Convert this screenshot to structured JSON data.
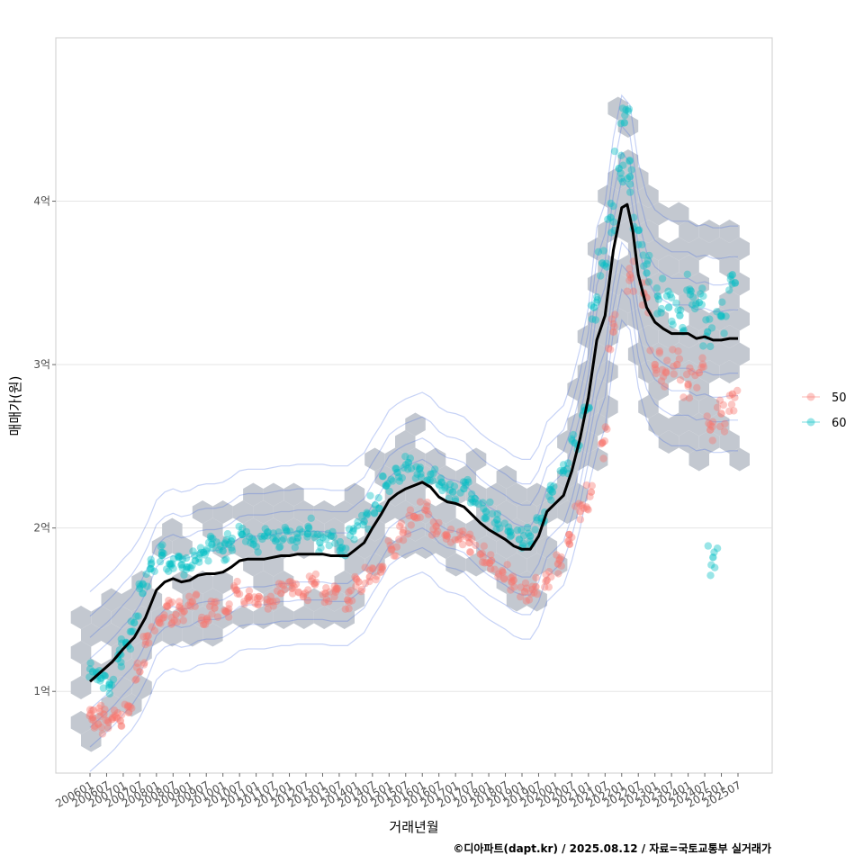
{
  "chart_data": {
    "type": "scatter",
    "title": "",
    "xlabel": "거래년월",
    "ylabel": "매매가(원)",
    "caption": "©디아파트(dapt.kr) / 2025.08.12 / 자료=국토교통부 실거래가",
    "ylim": [
      0.5,
      5.0
    ],
    "y_unit": "억",
    "yticks": [
      1,
      2,
      3,
      4
    ],
    "ytick_labels": [
      "1억",
      "2억",
      "3억",
      "4억"
    ],
    "x_start": "2006-01",
    "x_end": "2025-07",
    "xticks": [
      "200601",
      "200607",
      "200701",
      "200707",
      "200801",
      "200807",
      "200901",
      "200907",
      "201001",
      "201007",
      "201101",
      "201107",
      "201201",
      "201207",
      "201301",
      "201307",
      "201401",
      "201407",
      "201501",
      "201507",
      "201601",
      "201607",
      "201701",
      "201707",
      "201801",
      "201807",
      "201901",
      "201907",
      "202001",
      "202007",
      "202101",
      "202107",
      "202201",
      "202207",
      "202301",
      "202307",
      "202401",
      "202407",
      "202501",
      "202507"
    ],
    "legend": {
      "position": "right",
      "entries": [
        {
          "label": "50",
          "color": "#F8766D"
        },
        {
          "label": "60",
          "color": "#00BFC4"
        }
      ]
    },
    "trend_line": {
      "name": "moving average",
      "color": "#000000",
      "points": [
        [
          "2006-01",
          1.06
        ],
        [
          "2006-05",
          1.12
        ],
        [
          "2006-09",
          1.18
        ],
        [
          "2007-01",
          1.26
        ],
        [
          "2007-05",
          1.33
        ],
        [
          "2007-09",
          1.45
        ],
        [
          "2008-01",
          1.62
        ],
        [
          "2008-04",
          1.67
        ],
        [
          "2008-07",
          1.69
        ],
        [
          "2008-10",
          1.67
        ],
        [
          "2009-01",
          1.68
        ],
        [
          "2009-04",
          1.71
        ],
        [
          "2009-07",
          1.72
        ],
        [
          "2009-10",
          1.72
        ],
        [
          "2010-01",
          1.73
        ],
        [
          "2010-04",
          1.76
        ],
        [
          "2010-07",
          1.8
        ],
        [
          "2010-10",
          1.81
        ],
        [
          "2011-01",
          1.81
        ],
        [
          "2011-04",
          1.81
        ],
        [
          "2011-07",
          1.82
        ],
        [
          "2011-10",
          1.83
        ],
        [
          "2012-01",
          1.83
        ],
        [
          "2012-04",
          1.84
        ],
        [
          "2012-07",
          1.84
        ],
        [
          "2012-10",
          1.84
        ],
        [
          "2013-01",
          1.84
        ],
        [
          "2013-04",
          1.83
        ],
        [
          "2013-07",
          1.83
        ],
        [
          "2013-10",
          1.83
        ],
        [
          "2014-01",
          1.87
        ],
        [
          "2014-04",
          1.91
        ],
        [
          "2014-07",
          2.0
        ],
        [
          "2014-10",
          2.08
        ],
        [
          "2015-01",
          2.17
        ],
        [
          "2015-04",
          2.21
        ],
        [
          "2015-07",
          2.24
        ],
        [
          "2015-10",
          2.26
        ],
        [
          "2016-01",
          2.28
        ],
        [
          "2016-04",
          2.25
        ],
        [
          "2016-07",
          2.19
        ],
        [
          "2016-10",
          2.16
        ],
        [
          "2017-01",
          2.15
        ],
        [
          "2017-04",
          2.13
        ],
        [
          "2017-07",
          2.08
        ],
        [
          "2017-10",
          2.03
        ],
        [
          "2018-01",
          1.99
        ],
        [
          "2018-04",
          1.96
        ],
        [
          "2018-07",
          1.93
        ],
        [
          "2018-10",
          1.89
        ],
        [
          "2019-01",
          1.87
        ],
        [
          "2019-04",
          1.87
        ],
        [
          "2019-07",
          1.95
        ],
        [
          "2019-10",
          2.1
        ],
        [
          "2020-01",
          2.15
        ],
        [
          "2020-04",
          2.2
        ],
        [
          "2020-07",
          2.35
        ],
        [
          "2020-10",
          2.55
        ],
        [
          "2021-01",
          2.8
        ],
        [
          "2021-04",
          3.15
        ],
        [
          "2021-07",
          3.3
        ],
        [
          "2021-10",
          3.7
        ],
        [
          "2022-01",
          3.96
        ],
        [
          "2022-03",
          3.98
        ],
        [
          "2022-05",
          3.82
        ],
        [
          "2022-07",
          3.55
        ],
        [
          "2022-10",
          3.35
        ],
        [
          "2023-01",
          3.26
        ],
        [
          "2023-04",
          3.22
        ],
        [
          "2023-07",
          3.19
        ],
        [
          "2023-10",
          3.19
        ],
        [
          "2024-01",
          3.19
        ],
        [
          "2024-04",
          3.16
        ],
        [
          "2024-07",
          3.17
        ],
        [
          "2024-10",
          3.15
        ],
        [
          "2025-01",
          3.15
        ],
        [
          "2025-04",
          3.16
        ],
        [
          "2025-07",
          3.16
        ]
      ]
    },
    "series": [
      {
        "name": "50",
        "color": "#F8766D",
        "points": [
          [
            "2006-02",
            0.84
          ],
          [
            "2006-04",
            0.8
          ],
          [
            "2006-06",
            0.86
          ],
          [
            "2006-09",
            0.83
          ],
          [
            "2006-12",
            0.82
          ],
          [
            "2007-03",
            0.87
          ],
          [
            "2007-07",
            1.12
          ],
          [
            "2007-10",
            1.34
          ],
          [
            "2008-02",
            1.42
          ],
          [
            "2008-05",
            1.52
          ],
          [
            "2008-08",
            1.47
          ],
          [
            "2008-11",
            1.49
          ],
          [
            "2009-02",
            1.55
          ],
          [
            "2009-06",
            1.41
          ],
          [
            "2009-10",
            1.51
          ],
          [
            "2010-02",
            1.49
          ],
          [
            "2010-06",
            1.62
          ],
          [
            "2010-10",
            1.57
          ],
          [
            "2011-02",
            1.58
          ],
          [
            "2011-06",
            1.55
          ],
          [
            "2011-10",
            1.6
          ],
          [
            "2012-02",
            1.63
          ],
          [
            "2012-06",
            1.58
          ],
          [
            "2012-10",
            1.66
          ],
          [
            "2013-02",
            1.6
          ],
          [
            "2013-06",
            1.63
          ],
          [
            "2013-10",
            1.56
          ],
          [
            "2014-02",
            1.67
          ],
          [
            "2014-06",
            1.7
          ],
          [
            "2014-10",
            1.73
          ],
          [
            "2015-02",
            1.87
          ],
          [
            "2015-06",
            1.97
          ],
          [
            "2015-10",
            2.07
          ],
          [
            "2016-02",
            2.11
          ],
          [
            "2016-06",
            2.01
          ],
          [
            "2016-10",
            1.95
          ],
          [
            "2017-02",
            1.93
          ],
          [
            "2017-06",
            1.91
          ],
          [
            "2017-10",
            1.84
          ],
          [
            "2018-02",
            1.8
          ],
          [
            "2018-06",
            1.73
          ],
          [
            "2018-10",
            1.68
          ],
          [
            "2019-02",
            1.61
          ],
          [
            "2019-06",
            1.64
          ],
          [
            "2019-10",
            1.68
          ],
          [
            "2020-02",
            1.78
          ],
          [
            "2020-06",
            1.96
          ],
          [
            "2020-10",
            2.1
          ],
          [
            "2021-02",
            2.22
          ],
          [
            "2021-06",
            2.52
          ],
          [
            "2021-10",
            3.2
          ],
          [
            "2022-04",
            3.55
          ],
          [
            "2022-10",
            3.41
          ],
          [
            "2023-01",
            3.0
          ],
          [
            "2023-05",
            2.95
          ],
          [
            "2023-09",
            3.0
          ],
          [
            "2024-01",
            2.88
          ],
          [
            "2024-05",
            2.95
          ],
          [
            "2024-09",
            2.6
          ],
          [
            "2025-01",
            2.7
          ],
          [
            "2025-05",
            2.82
          ]
        ]
      },
      {
        "name": "60",
        "color": "#00BFC4",
        "points": [
          [
            "2006-02",
            1.12
          ],
          [
            "2006-05",
            1.08
          ],
          [
            "2006-08",
            1.04
          ],
          [
            "2006-11",
            1.2
          ],
          [
            "2007-02",
            1.3
          ],
          [
            "2007-05",
            1.42
          ],
          [
            "2007-08",
            1.6
          ],
          [
            "2007-11",
            1.75
          ],
          [
            "2008-03",
            1.85
          ],
          [
            "2008-06",
            1.78
          ],
          [
            "2008-09",
            1.82
          ],
          [
            "2008-12",
            1.76
          ],
          [
            "2009-03",
            1.8
          ],
          [
            "2009-06",
            1.85
          ],
          [
            "2009-09",
            1.9
          ],
          [
            "2010-01",
            1.86
          ],
          [
            "2010-04",
            1.92
          ],
          [
            "2010-08",
            1.96
          ],
          [
            "2010-12",
            1.9
          ],
          [
            "2011-04",
            1.95
          ],
          [
            "2011-08",
            1.92
          ],
          [
            "2011-12",
            1.98
          ],
          [
            "2012-04",
            1.94
          ],
          [
            "2012-08",
            2.0
          ],
          [
            "2012-12",
            1.91
          ],
          [
            "2013-04",
            1.95
          ],
          [
            "2013-08",
            1.88
          ],
          [
            "2013-12",
            1.98
          ],
          [
            "2014-04",
            2.04
          ],
          [
            "2014-08",
            2.14
          ],
          [
            "2014-12",
            2.26
          ],
          [
            "2015-04",
            2.34
          ],
          [
            "2015-08",
            2.4
          ],
          [
            "2015-12",
            2.36
          ],
          [
            "2016-04",
            2.33
          ],
          [
            "2016-08",
            2.28
          ],
          [
            "2016-12",
            2.22
          ],
          [
            "2017-04",
            2.24
          ],
          [
            "2017-08",
            2.18
          ],
          [
            "2017-12",
            2.1
          ],
          [
            "2018-04",
            2.05
          ],
          [
            "2018-08",
            1.98
          ],
          [
            "2018-12",
            1.93
          ],
          [
            "2019-04",
            1.95
          ],
          [
            "2019-08",
            2.06
          ],
          [
            "2019-12",
            2.22
          ],
          [
            "2020-04",
            2.35
          ],
          [
            "2020-08",
            2.52
          ],
          [
            "2020-12",
            2.72
          ],
          [
            "2021-03",
            3.35
          ],
          [
            "2021-06",
            3.62
          ],
          [
            "2021-09",
            3.9
          ],
          [
            "2021-12",
            4.2
          ],
          [
            "2022-02",
            4.48
          ],
          [
            "2022-04",
            4.15
          ],
          [
            "2022-07",
            3.82
          ],
          [
            "2022-10",
            3.56
          ],
          [
            "2023-02",
            3.42
          ],
          [
            "2023-06",
            3.35
          ],
          [
            "2023-10",
            3.3
          ],
          [
            "2024-02",
            3.45
          ],
          [
            "2024-05",
            3.38
          ],
          [
            "2024-08",
            3.2
          ],
          [
            "2024-10",
            1.82
          ],
          [
            "2025-01",
            3.3
          ],
          [
            "2025-05",
            3.55
          ]
        ]
      }
    ]
  }
}
